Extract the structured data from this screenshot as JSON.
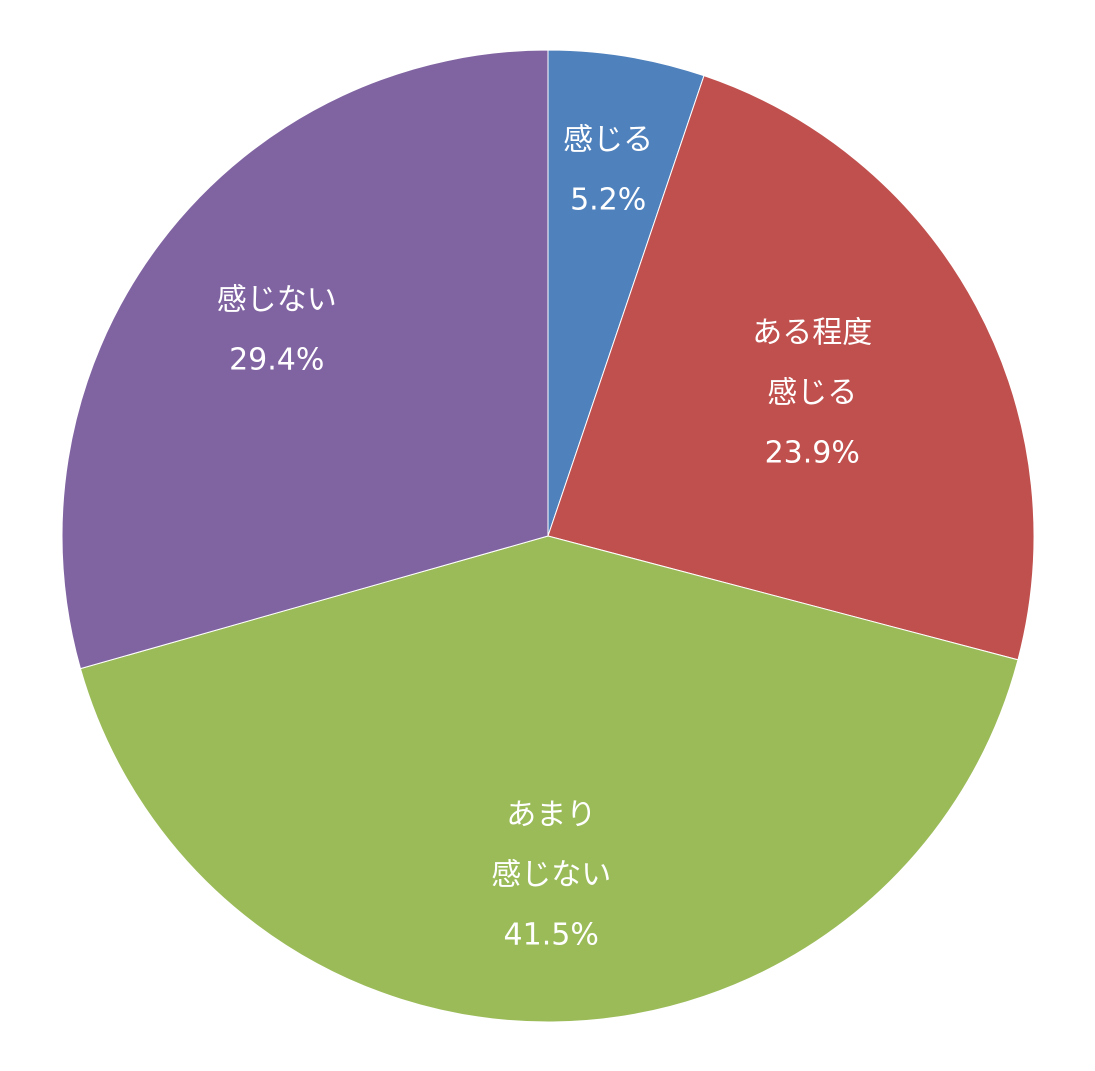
{
  "chart_data": {
    "type": "pie",
    "title": "",
    "start_angle_deg": 0,
    "direction": "clockwise",
    "slices": [
      {
        "label_lines": [
          "感じる"
        ],
        "value": 5.2,
        "value_label": "5.2%",
        "color": "#4F81BD"
      },
      {
        "label_lines": [
          "ある程度",
          "感じる"
        ],
        "value": 23.9,
        "value_label": "23.9%",
        "color": "#C0504D"
      },
      {
        "label_lines": [
          "あまり",
          "感じない"
        ],
        "value": 41.5,
        "value_label": "41.5%",
        "color": "#9BBB59"
      },
      {
        "label_lines": [
          "感じない"
        ],
        "value": 29.4,
        "value_label": "29.4%",
        "color": "#8064A2"
      }
    ]
  }
}
